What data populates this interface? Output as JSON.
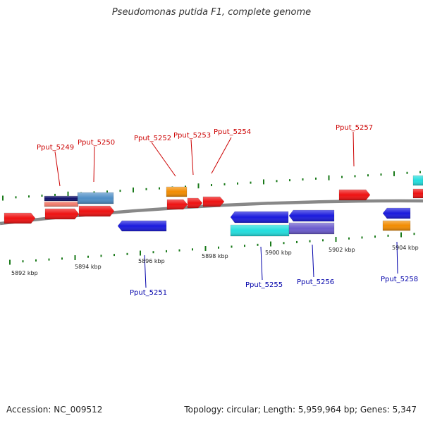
{
  "title": "Pseudomonas putida F1, complete genome",
  "footer": {
    "accession": "Accession: NC_009512",
    "stats": "Topology: circular; Length: 5,959,964 bp; Genes: 5,347"
  },
  "colors": {
    "forward_label": "#cc0000",
    "reverse_label": "#0000aa",
    "ruler_tick": "#1a7a1a",
    "backbone": "#888888",
    "red": "#ee1111",
    "blue": "#1a1add",
    "orange": "#f28c00",
    "cyan": "#22dddd",
    "steelblue": "#4f8fc6",
    "slate": "#6a5acd",
    "navy": "#10106a",
    "salmon": "#f07a6a"
  },
  "scale": {
    "unit": "kbp",
    "tick_labels": [
      "5892 kbp",
      "5894 kbp",
      "5896 kbp",
      "5898 kbp",
      "5900 kbp",
      "5902 kbp",
      "5904 kbp"
    ]
  },
  "gene_labels": {
    "forward": [
      "Pput_5249",
      "Pput_5250",
      "Pput_5252",
      "Pput_5253",
      "Pput_5254",
      "Pput_5257"
    ],
    "reverse": [
      "Pput_5251",
      "Pput_5255",
      "Pput_5256",
      "Pput_5258"
    ]
  }
}
